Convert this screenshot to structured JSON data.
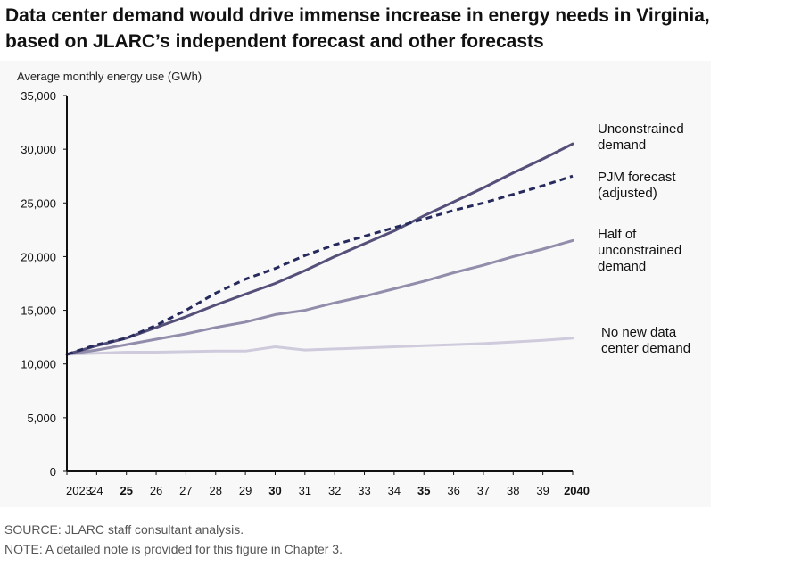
{
  "title_lines": [
    "Data center demand would drive immense increase in energy needs in Virginia,",
    "based on JLARC’s independent forecast and other forecasts"
  ],
  "footer": {
    "source": "SOURCE: JLARC staff consultant analysis.",
    "note": "NOTE: A detailed note is provided for this figure in Chapter 3."
  },
  "colors": {
    "unconstrained": "#54507a",
    "pjm": "#262a5c",
    "half": "#928dab",
    "no_new": "#cfcbdc",
    "axis": "#111111",
    "panel": "#f8f8f8"
  },
  "chart_data": {
    "type": "line",
    "ylabel": "Average monthly energy use (GWh)",
    "xlabel": "",
    "x": [
      2023,
      2024,
      2025,
      2026,
      2027,
      2028,
      2029,
      2030,
      2031,
      2032,
      2033,
      2034,
      2035,
      2036,
      2037,
      2038,
      2039,
      2040
    ],
    "x_tick_labels": [
      "2023",
      "24",
      "25",
      "26",
      "27",
      "28",
      "29",
      "30",
      "31",
      "32",
      "33",
      "34",
      "35",
      "36",
      "37",
      "38",
      "39",
      "2040"
    ],
    "x_tick_bold": [
      "25",
      "30",
      "35",
      "2040"
    ],
    "ylim": [
      0,
      35000
    ],
    "y_ticks": [
      0,
      5000,
      10000,
      15000,
      20000,
      25000,
      30000,
      35000
    ],
    "y_tick_labels": [
      "0",
      "5,000",
      "10,000",
      "15,000",
      "20,000",
      "25,000",
      "30,000",
      "35,000"
    ],
    "grid": false,
    "legend": "direct labels at right end of lines",
    "series": [
      {
        "name": "Unconstrained demand",
        "label_lines": [
          "Unconstrained",
          "demand"
        ],
        "style": "solid",
        "values": [
          10900,
          11700,
          12400,
          13400,
          14400,
          15500,
          16500,
          17500,
          18700,
          20000,
          21200,
          22400,
          23800,
          25100,
          26400,
          27800,
          29100,
          30500
        ]
      },
      {
        "name": "PJM forecast (adjusted)",
        "label_lines": [
          "PJM forecast",
          "(adjusted)"
        ],
        "style": "dashed",
        "values": [
          10900,
          11800,
          12400,
          13600,
          15000,
          16600,
          17900,
          18900,
          20100,
          21100,
          21900,
          22700,
          23500,
          24300,
          25000,
          25800,
          26600,
          27500
        ]
      },
      {
        "name": "Half of unconstrained demand",
        "label_lines": [
          "Half of",
          "unconstrained",
          "demand"
        ],
        "style": "solid",
        "values": [
          10900,
          11300,
          11800,
          12300,
          12800,
          13400,
          13900,
          14600,
          15000,
          15700,
          16300,
          17000,
          17700,
          18500,
          19200,
          20000,
          20700,
          21500
        ]
      },
      {
        "name": "No new data center demand",
        "label_lines": [
          "No new data",
          "center demand"
        ],
        "style": "solid",
        "values": [
          10900,
          11000,
          11100,
          11100,
          11150,
          11200,
          11200,
          11600,
          11300,
          11400,
          11500,
          11600,
          11700,
          11800,
          11900,
          12050,
          12200,
          12400
        ]
      }
    ]
  }
}
